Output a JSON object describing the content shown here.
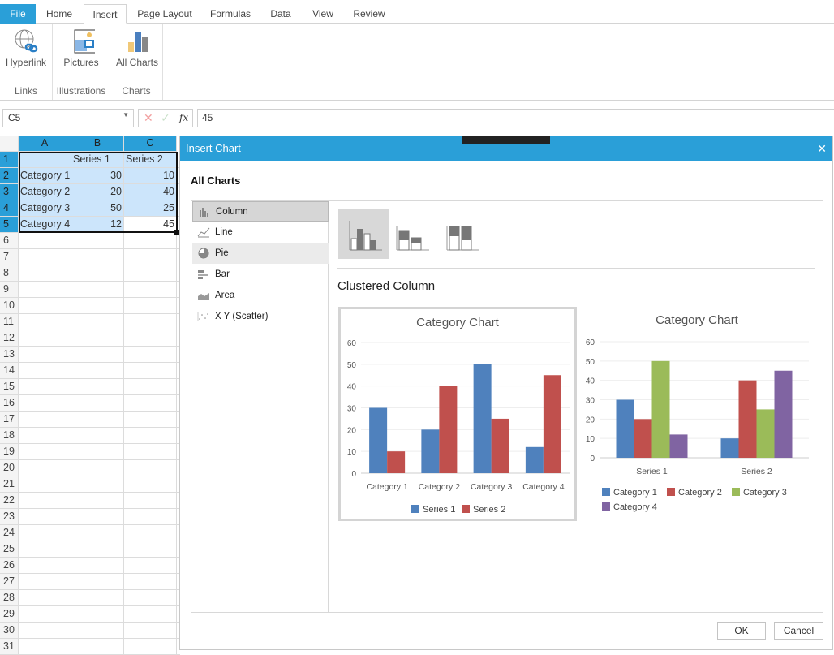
{
  "tabs": [
    "File",
    "Home",
    "Insert",
    "Page Layout",
    "Formulas",
    "Data",
    "View",
    "Review"
  ],
  "ribbon": {
    "hyperlink": "Hyperlink",
    "pictures": "Pictures",
    "all_charts": "All Charts",
    "links": "Links",
    "illustrations": "Illustrations",
    "charts": "Charts"
  },
  "formula": {
    "name_box": "C5",
    "fx": "fx",
    "value": "45"
  },
  "grid": {
    "columns": [
      "A",
      "B",
      "C"
    ],
    "rows": [
      [
        "",
        "Series 1",
        "Series 2"
      ],
      [
        "Category 1",
        "30",
        "10"
      ],
      [
        "Category 2",
        "20",
        "40"
      ],
      [
        "Category 3",
        "50",
        "25"
      ],
      [
        "Category 4",
        "12",
        "45"
      ]
    ],
    "row_count": 31
  },
  "dialog": {
    "title": "Insert Chart",
    "heading": "All Charts",
    "types": [
      "Column",
      "Line",
      "Pie",
      "Bar",
      "Area",
      "X Y (Scatter)"
    ],
    "subtype_title": "Clustered Column",
    "ok": "OK",
    "cancel": "Cancel"
  },
  "chart_data": [
    {
      "type": "bar",
      "title": "Category Chart",
      "categories": [
        "Category 1",
        "Category 2",
        "Category 3",
        "Category 4"
      ],
      "series": [
        {
          "name": "Series 1",
          "values": [
            30,
            20,
            50,
            12
          ],
          "color": "#4f81bd"
        },
        {
          "name": "Series 2",
          "values": [
            10,
            40,
            25,
            45
          ],
          "color": "#c0504d"
        }
      ],
      "ylim": [
        0,
        60
      ],
      "yticks": [
        0,
        10,
        20,
        30,
        40,
        50,
        60
      ],
      "legend": "bottom"
    },
    {
      "type": "bar",
      "title": "Category Chart",
      "categories": [
        "Series 1",
        "Series 2"
      ],
      "series": [
        {
          "name": "Category 1",
          "values": [
            30,
            10
          ],
          "color": "#4f81bd"
        },
        {
          "name": "Category 2",
          "values": [
            20,
            40
          ],
          "color": "#c0504d"
        },
        {
          "name": "Category 3",
          "values": [
            50,
            25
          ],
          "color": "#9bbb59"
        },
        {
          "name": "Category 4",
          "values": [
            12,
            45
          ],
          "color": "#8064a2"
        }
      ],
      "ylim": [
        0,
        60
      ],
      "yticks": [
        0,
        10,
        20,
        30,
        40,
        50,
        60
      ],
      "legend": "bottom"
    }
  ]
}
